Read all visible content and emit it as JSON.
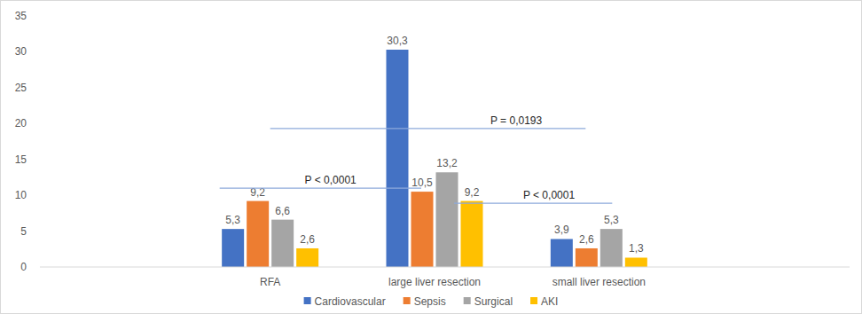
{
  "chart_data": {
    "type": "bar",
    "categories": [
      "RFA",
      "large liver resection",
      "small liver resection"
    ],
    "series": [
      {
        "name": "Cardiovascular",
        "color": "#4472c4",
        "values": [
          5.3,
          30.3,
          3.9
        ],
        "value_labels": [
          "5,3",
          "30,3",
          "3,9"
        ]
      },
      {
        "name": "Sepsis",
        "color": "#ed7d31",
        "values": [
          9.2,
          10.5,
          2.6
        ],
        "value_labels": [
          "9,2",
          "10,5",
          "2,6"
        ]
      },
      {
        "name": "Surgical",
        "color": "#a5a5a5",
        "values": [
          6.6,
          13.2,
          5.3
        ],
        "value_labels": [
          "6,6",
          "13,2",
          "5,3"
        ]
      },
      {
        "name": "AKI",
        "color": "#ffc000",
        "values": [
          2.6,
          9.2,
          1.3
        ],
        "value_labels": [
          "2,6",
          "9,2",
          "1,3"
        ]
      }
    ],
    "ylim": [
      0,
      35
    ],
    "yticks": [
      0,
      5,
      10,
      15,
      20,
      25,
      30,
      35
    ],
    "grid": false,
    "legend": "bottom",
    "data_labels": true,
    "annotations": [
      {
        "text": "P = 0,0193",
        "from": "RFA",
        "to": "small liver resection",
        "y": 19.3
      },
      {
        "text": "P < 0,0001",
        "from": "RFA",
        "to": "large liver resection",
        "y": 11.0
      },
      {
        "text": "P < 0,0001",
        "from": "large liver resection",
        "to": "small liver resection",
        "y": 8.9
      }
    ]
  }
}
